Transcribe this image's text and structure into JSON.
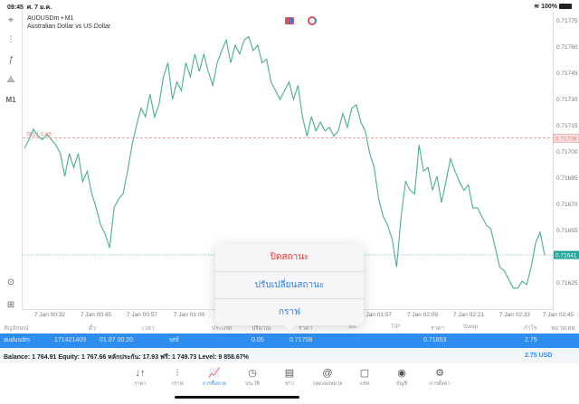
{
  "status_bar": {
    "time": "09:45",
    "date": "ศ. 7 ม.ค.",
    "battery": "100%"
  },
  "toolbar": {
    "items": [
      {
        "icon": "crosshair-icon",
        "label": "⌖"
      },
      {
        "icon": "candlestick-icon",
        "label": "⫶"
      },
      {
        "icon": "function-icon",
        "label": "ƒ"
      },
      {
        "icon": "objects-icon",
        "label": "⟁"
      },
      {
        "icon": "timeframe",
        "label": "M1"
      }
    ],
    "bottom": [
      {
        "icon": "trade-chart-icon",
        "label": "⊙"
      },
      {
        "icon": "add-chart-icon",
        "label": "⊞"
      }
    ]
  },
  "chart": {
    "symbol": "AUDUSDm • M1",
    "description": "Australian Dollar vs US Dollar",
    "sell_label": "SELL 0.05",
    "sell_price": "0.71708",
    "bid_price": "0.71641",
    "colors": {
      "line": "#4caf88",
      "sell": "#e57373",
      "bid": "#26a69a"
    }
  },
  "chart_data": {
    "type": "line",
    "y_ticks": [
      "0.71775",
      "0.71760",
      "0.71745",
      "0.71730",
      "0.71715",
      "0.71700",
      "0.71685",
      "0.71670",
      "0.71655",
      "0.71625"
    ],
    "ylim": [
      0.71618,
      0.7178
    ],
    "x_ticks": [
      "7 Jan 00:32",
      "7 Jan 00:45",
      "7 Jan 00:57",
      "7 Jan 01:09",
      "7 Jan 01:57",
      "7 Jan 02:09",
      "7 Jan 02:21",
      "7 Jan 02:33",
      "7 Jan 02:45"
    ],
    "values": [
      0.71702,
      0.71707,
      0.71713,
      0.71709,
      0.71707,
      0.7171,
      0.71707,
      0.71704,
      0.71699,
      0.71686,
      0.71699,
      0.71691,
      0.71699,
      0.71683,
      0.71689,
      0.71676,
      0.71668,
      0.71658,
      0.71653,
      0.71645,
      0.71668,
      0.71673,
      0.71676,
      0.71689,
      0.71704,
      0.71715,
      0.71725,
      0.7172,
      0.71733,
      0.7172,
      0.71727,
      0.71743,
      0.71751,
      0.7173,
      0.7174,
      0.71735,
      0.71751,
      0.71743,
      0.71756,
      0.71746,
      0.71756,
      0.71746,
      0.71738,
      0.71751,
      0.71758,
      0.71764,
      0.71751,
      0.71761,
      0.71756,
      0.71764,
      0.71766,
      0.71758,
      0.71761,
      0.71751,
      0.71753,
      0.7174,
      0.71735,
      0.7173,
      0.71735,
      0.7174,
      0.7173,
      0.71738,
      0.7172,
      0.71709,
      0.7172,
      0.71712,
      0.71717,
      0.71712,
      0.71714,
      0.71709,
      0.71712,
      0.71722,
      0.71714,
      0.71725,
      0.71727,
      0.71717,
      0.71712,
      0.71699,
      0.71691,
      0.71673,
      0.71663,
      0.71658,
      0.7165,
      0.71634,
      0.71663,
      0.71683,
      0.71678,
      0.71676,
      0.71704,
      0.71689,
      0.71691,
      0.71678,
      0.71686,
      0.71671,
      0.71683,
      0.71696,
      0.71689,
      0.71683,
      0.71678,
      0.71681,
      0.71668,
      0.71668,
      0.71663,
      0.71658,
      0.71656,
      0.71645,
      0.71634,
      0.71632,
      0.71627,
      0.71622,
      0.71622,
      0.71626,
      0.71624,
      0.71634,
      0.71648,
      0.71654,
      0.71641
    ]
  },
  "table": {
    "headers": [
      "สัญลักษณ์",
      "ตั๋ว",
      "เวลา",
      "ประเภท",
      "ปริมาณ",
      "ราคา",
      "S/L",
      "T/P",
      "ราคา",
      "Swap",
      "กำไร",
      "หมายเหตุ"
    ],
    "row": {
      "symbol": "audusdm",
      "ticket": "171421409",
      "time": "01.07 00:20",
      "type": "sell",
      "volume": "0.05",
      "open_price": "0.71708",
      "price": "0.71653",
      "profit": "2.75"
    },
    "balance": "Balance: 1 764.91 Equity: 1 767.66 หลักประกัน: 17.93 ฟรี: 1 749.73 Level: 9 858.67%",
    "total": "2.75  USD"
  },
  "popup": {
    "items": [
      {
        "label": "ปิดสถานะ",
        "color": "#e53935"
      },
      {
        "label": "ปรับเปลี่ยนสถานะ",
        "color": "#2e7fd8"
      },
      {
        "label": "กราฟ",
        "color": "#2e7fd8"
      }
    ]
  },
  "tabs": [
    {
      "label": "ราคา",
      "icon": "↓↑"
    },
    {
      "label": "กราฟ",
      "icon": "⫶"
    },
    {
      "label": "การซื้อขาย",
      "icon": "📈",
      "active": true
    },
    {
      "label": "ประวัติ",
      "icon": "◷"
    },
    {
      "label": "ข่าว",
      "icon": "▤"
    },
    {
      "label": "กล่องจดหมาย",
      "icon": "@"
    },
    {
      "label": "แชท",
      "icon": "▢"
    },
    {
      "label": "บัญชี",
      "icon": "◉"
    },
    {
      "label": "การตั้งค่า",
      "icon": "⚙"
    }
  ]
}
